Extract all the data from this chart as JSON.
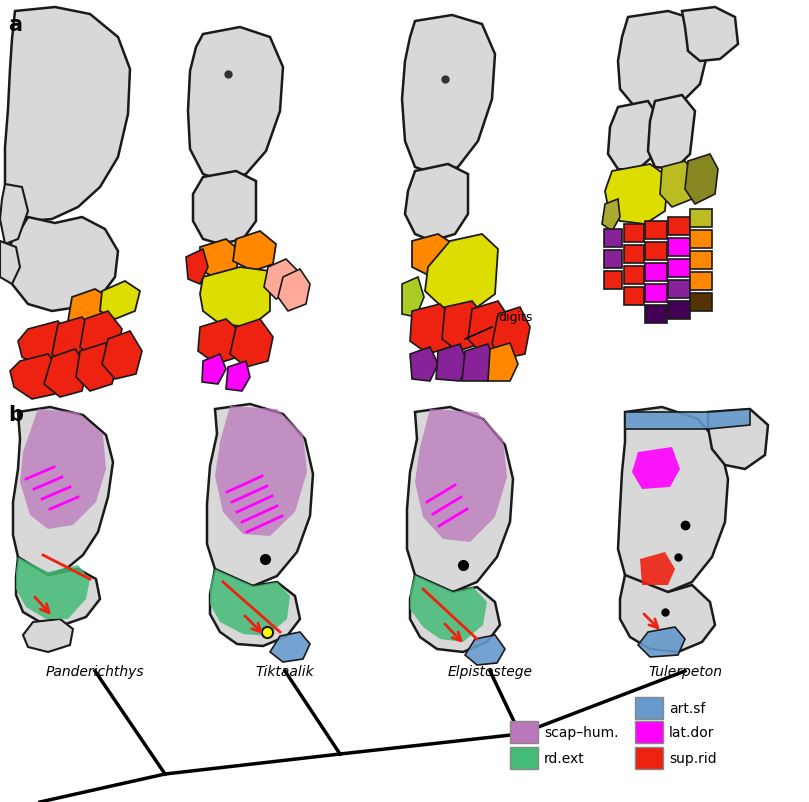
{
  "background_color": "#ffffff",
  "gray": "#D8D8D8",
  "outline": "#1a1a1a",
  "red": "#EE2211",
  "orange": "#FF8800",
  "yellow": "#DDDD00",
  "magenta": "#FF00FF",
  "purple": "#882299",
  "dark_purple": "#440055",
  "coral": "#FFAA99",
  "green_ext": "#44BB77",
  "blue_art": "#6699CC",
  "scap_hum": "#BB77BB",
  "clad_lw": 2.5,
  "species": [
    "Panderichthys",
    "Tiktaalik",
    "Elpistostege",
    "Tulerpeton"
  ],
  "digits_label": "digits"
}
